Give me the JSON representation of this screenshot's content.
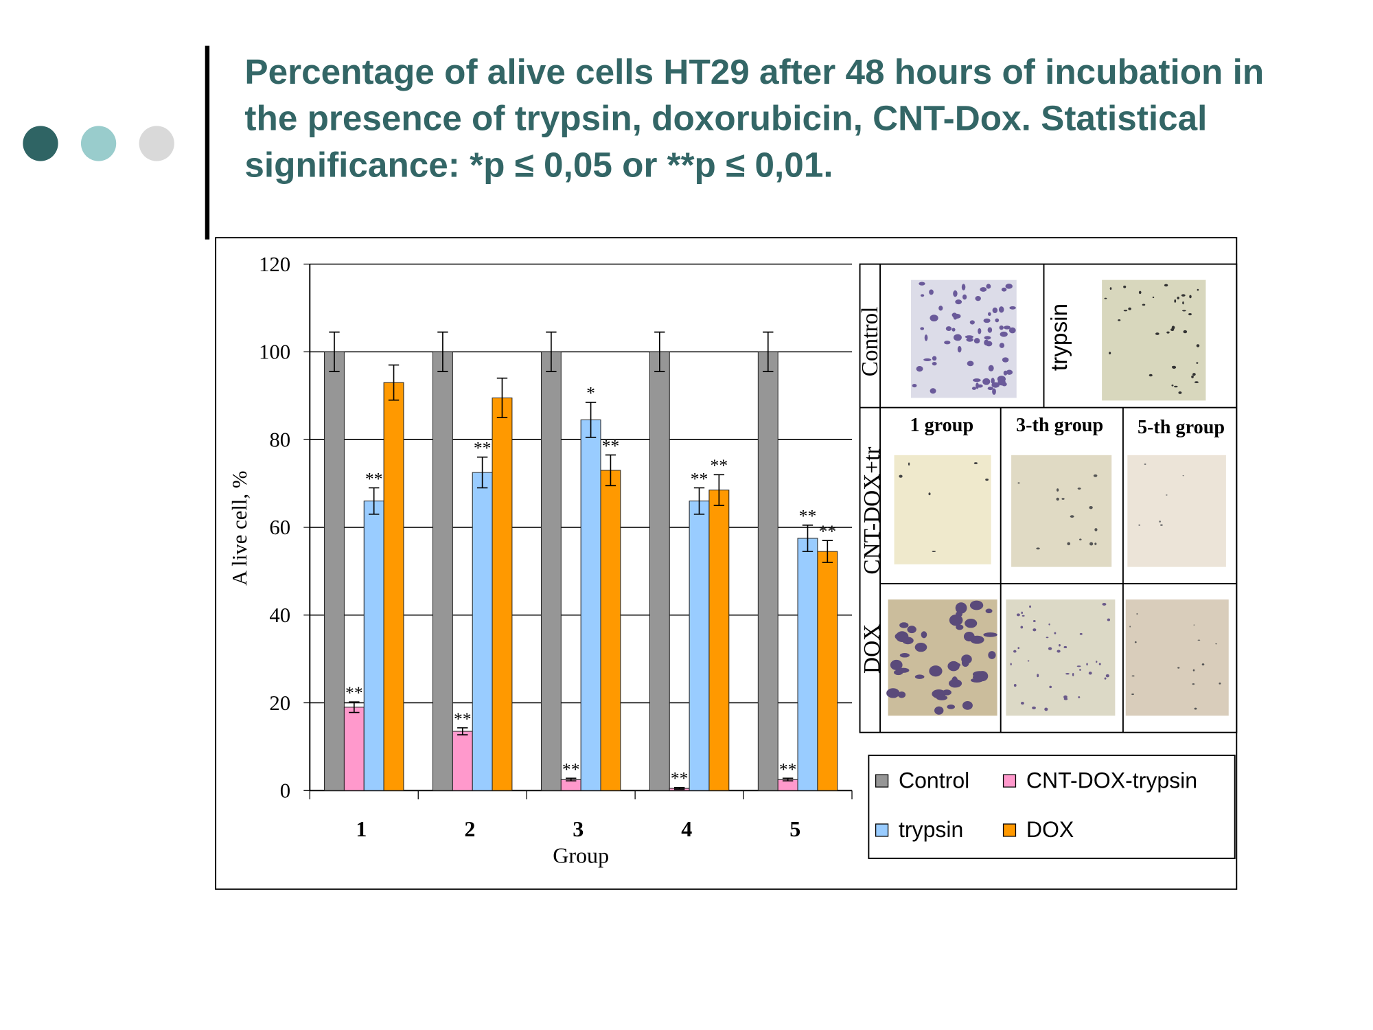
{
  "slide_title": "Percentage of alive cells HT29 after 48 hours of incubation in the presence of trypsin, doxorubicin, CNT-Dox. Statistical significance: *p ≤ 0,05 or **p ≤ 0,01.",
  "chart_data": {
    "type": "bar",
    "categories": [
      "1",
      "2",
      "3",
      "4",
      "5"
    ],
    "x_label": "Group",
    "y_label": "A live cell, %",
    "ylim": [
      0,
      120
    ],
    "yticks": [
      0,
      20,
      40,
      60,
      80,
      100,
      120
    ],
    "grid": true,
    "series": [
      {
        "name": "Control",
        "color": "#969696",
        "values": [
          100,
          100,
          100,
          100,
          100
        ],
        "errors": [
          4.5,
          4.5,
          4.5,
          4.5,
          4.5
        ],
        "labels": [
          null,
          null,
          null,
          null,
          null
        ]
      },
      {
        "name": "CNT-DOX-trypsin",
        "color": "#ff99cc",
        "values": [
          19,
          13.5,
          2.5,
          0.5,
          2.5
        ],
        "errors": [
          1.2,
          0.8,
          0.3,
          0.2,
          0.3
        ],
        "labels": [
          "**",
          "**",
          "**",
          "**",
          "**"
        ]
      },
      {
        "name": "trypsin",
        "color": "#99ccff",
        "values": [
          66,
          72.5,
          84.5,
          66,
          57.5
        ],
        "errors": [
          3,
          3.5,
          4,
          3,
          3
        ],
        "labels": [
          "**",
          "**",
          "*",
          "**",
          "**"
        ]
      },
      {
        "name": "DOX",
        "color": "#ff9900",
        "values": [
          93,
          89.5,
          73,
          68.5,
          54.5
        ],
        "errors": [
          4,
          4.5,
          3.5,
          3.5,
          2.5
        ],
        "labels": [
          null,
          null,
          "**",
          "**",
          "**"
        ]
      }
    ]
  },
  "micrographs": {
    "top_labels": [
      "Control",
      "trypsin"
    ],
    "column_labels": [
      "1 group",
      "3-th group",
      "5-th group"
    ],
    "row_labels": [
      "CNT-DOX+tr",
      "DOX"
    ]
  }
}
